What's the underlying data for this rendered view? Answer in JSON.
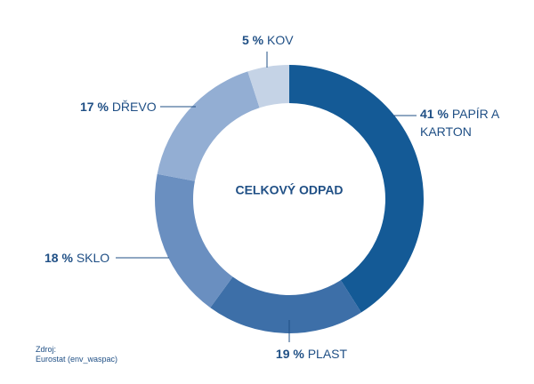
{
  "chart_data": {
    "type": "donut",
    "title": "CELKOVÝ ODPAD",
    "categories": [
      "PAPÍR A KARTON",
      "PLAST",
      "SKLO",
      "DŘEVO",
      "KOV"
    ],
    "values": [
      41,
      19,
      18,
      17,
      5
    ],
    "value_labels": [
      "41 %",
      "19 %",
      "18 %",
      "17 %",
      "5 %"
    ],
    "colors": [
      "#145a96",
      "#3d6fa8",
      "#6a8fc0",
      "#93aed3",
      "#c5d3e6"
    ],
    "source": [
      "Zdroj:",
      "Eurostat (env_waspac)"
    ]
  }
}
